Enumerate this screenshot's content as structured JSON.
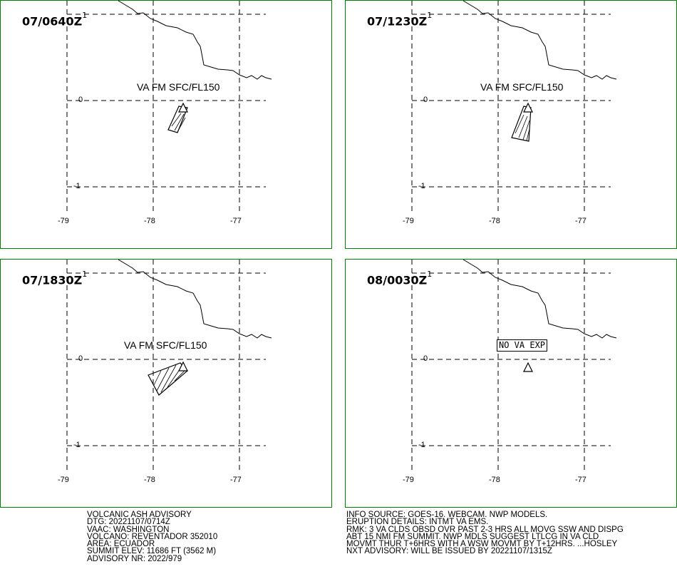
{
  "panels": [
    {
      "time": "07/0640Z",
      "fcst_hour": "1",
      "label": "VA FM SFC/FL150"
    },
    {
      "time": "07/1230Z",
      "fcst_hour": "1",
      "label": "VA FM SFC/FL150"
    },
    {
      "time": "07/1830Z",
      "fcst_hour": "1",
      "label": "VA FM SFC/FL150"
    },
    {
      "time": "08/0030Z",
      "fcst_hour": "1",
      "label": "NO VA EXP"
    }
  ],
  "axis": {
    "lon_ticks": [
      "-79",
      "-78",
      "-77"
    ],
    "lat_ticks": [
      "0",
      "-1"
    ]
  },
  "colors": {
    "frame": "#008000",
    "lines": "#000000"
  },
  "advisory_left": [
    "VOLCANIC ASH ADVISORY",
    "DTG: 20221107/0714Z",
    "VAAC: WASHINGTON",
    "VOLCANO: REVENTADOR 352010",
    "AREA: ECUADOR",
    "SUMMIT ELEV: 11686 FT (3562 M)",
    "ADVISORY NR: 2022/979"
  ],
  "advisory_right": [
    "INFO SOURCE: GOES-16. WEBCAM. NWP MODELS.",
    "ERUPTION DETAILS: INTMT VA EMS.",
    "RMK: 3 VA CLDS OBSD OVR PAST 2-3 HRS ALL MOVG SSW AND DISPG",
    "ABT 15 NMI FM SUMMIT. NWP MDLS SUGGEST LTLCG IN VA CLD",
    "MOVMT THUR T+6HRS WITH A WSW MOVMT BY T+12HRS. ...HOSLEY",
    "NXT ADVISORY: WILL BE ISSUED BY 20221107/1315Z"
  ]
}
